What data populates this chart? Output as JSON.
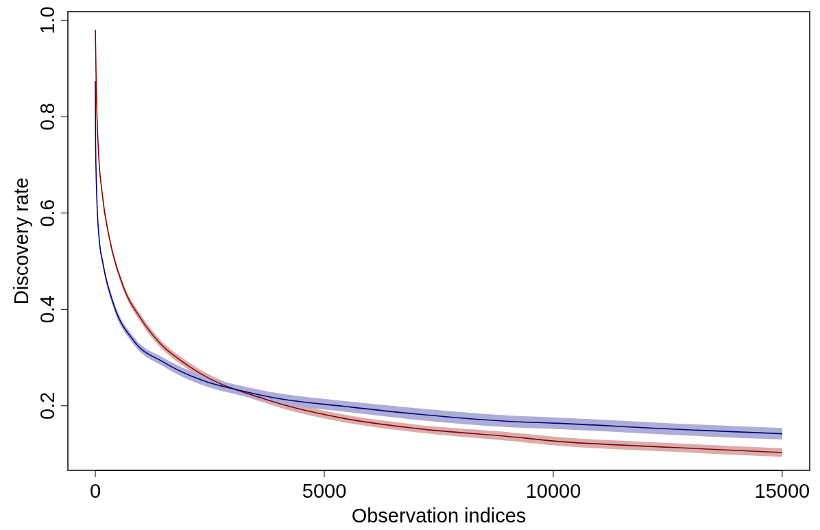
{
  "chart_data": {
    "type": "line",
    "xlabel": "Observation indices",
    "ylabel": "Discovery rate",
    "xlim": [
      -600,
      15600
    ],
    "ylim": [
      0.066,
      1.018
    ],
    "xticks": [
      0,
      5000,
      10000,
      15000
    ],
    "yticks": [
      0.2,
      0.4,
      0.6,
      0.8,
      {
        "value": 1.0,
        "label": "1.0"
      }
    ],
    "grid": false,
    "series": [
      {
        "color": "#8b0000",
        "x": [
          0,
          20,
          65,
          150,
          314,
          600,
          1000,
          1362,
          2000,
          2425,
          3700,
          4000,
          5419,
          7000,
          9162,
          10000,
          12500,
          15000
        ],
        "values": [
          0.98,
          0.86,
          0.734,
          0.64,
          0.545,
          0.45,
          0.38,
          0.335,
          0.285,
          0.26,
          0.214,
          0.205,
          0.174,
          0.153,
          0.135,
          0.127,
          0.114,
          0.103
        ],
        "lower": [
          0.978,
          0.857,
          0.73,
          0.635,
          0.539,
          0.443,
          0.372,
          0.327,
          0.277,
          0.252,
          0.206,
          0.197,
          0.166,
          0.145,
          0.126,
          0.118,
          0.105,
          0.094
        ],
        "upper": [
          0.982,
          0.863,
          0.738,
          0.645,
          0.551,
          0.457,
          0.388,
          0.343,
          0.293,
          0.268,
          0.222,
          0.213,
          0.182,
          0.161,
          0.144,
          0.136,
          0.123,
          0.112
        ]
      },
      {
        "color": "#000080",
        "x": [
          0,
          5,
          30,
          80,
          165,
          400,
          838,
          1500,
          2425,
          3069,
          4000,
          5419,
          7000,
          9162,
          10000,
          12500,
          15000
        ],
        "values": [
          0.874,
          0.75,
          0.638,
          0.55,
          0.496,
          0.41,
          0.335,
          0.29,
          0.25,
          0.234,
          0.215,
          0.199,
          0.183,
          0.167,
          0.164,
          0.152,
          0.142
        ],
        "lower": [
          0.871,
          0.746,
          0.633,
          0.544,
          0.489,
          0.402,
          0.327,
          0.281,
          0.24,
          0.224,
          0.204,
          0.188,
          0.171,
          0.155,
          0.152,
          0.14,
          0.13
        ],
        "upper": [
          0.877,
          0.754,
          0.643,
          0.556,
          0.503,
          0.418,
          0.343,
          0.299,
          0.26,
          0.244,
          0.226,
          0.21,
          0.195,
          0.179,
          0.176,
          0.164,
          0.154
        ]
      }
    ]
  }
}
